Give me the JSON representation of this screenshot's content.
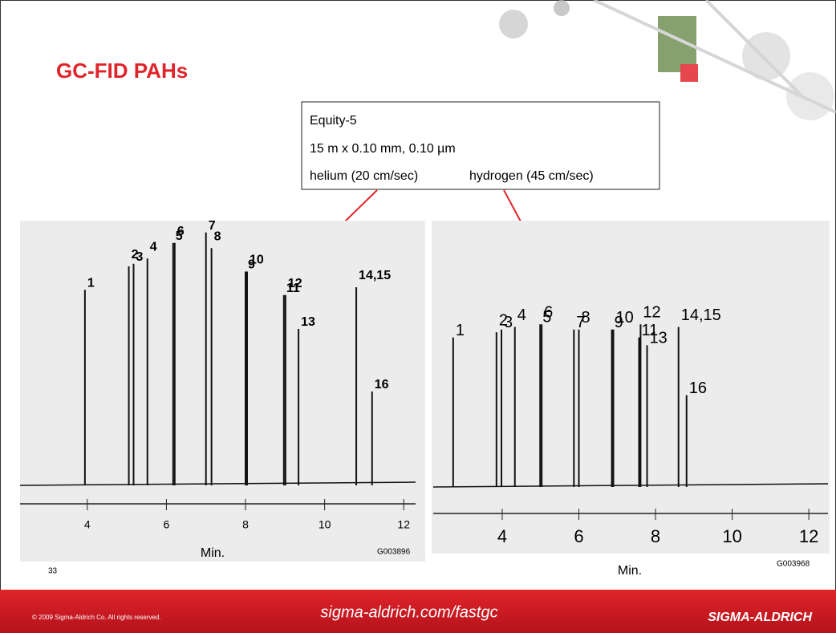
{
  "slide": {
    "title": "GC-FID PAHs",
    "box": [
      "Equity-5",
      "15 m x 0.10 mm, 0.10 µm",
      "helium (20 cm/sec)",
      "hydrogen (45 cm/sec)"
    ],
    "page_number": "33",
    "copyright": "© 2009 Sigma-Aldrich Co. All rights reserved.",
    "url": "sigma-aldrich.com/fastgc",
    "logo": "SIGMA-ALDRICH"
  },
  "chart_data": [
    {
      "type": "chromatogram",
      "x_label": "Min.",
      "code": "G003896",
      "categories": [
        "1",
        "2",
        "3",
        "4",
        "5",
        "6",
        "7",
        "8",
        "9",
        "10",
        "11",
        "12",
        "13",
        "14,15",
        "16"
      ],
      "x": [
        3.94,
        5.05,
        5.17,
        5.52,
        6.17,
        6.21,
        7.0,
        7.14,
        8.0,
        8.04,
        8.97,
        9.01,
        9.34,
        10.8,
        11.2
      ],
      "values": [
        75,
        84,
        85,
        87,
        93,
        93,
        97,
        91,
        82,
        82,
        73,
        73,
        60,
        76,
        36
      ],
      "xlim": [
        2.3,
        12.3
      ],
      "xticks": [
        4,
        6,
        8,
        10,
        12
      ],
      "ylim": [
        0,
        100
      ],
      "color": "#111111"
    },
    {
      "type": "chromatogram",
      "x_label": "Min.",
      "code": "G003968",
      "categories": [
        "1",
        "2",
        "3",
        "4",
        "5",
        "6",
        "7",
        "8",
        "9",
        "10",
        "11",
        "12",
        "13",
        "14,15",
        "16"
      ],
      "x": [
        2.72,
        3.85,
        3.98,
        4.33,
        4.99,
        5.03,
        5.87,
        6.0,
        6.86,
        6.9,
        7.57,
        7.61,
        7.78,
        8.6,
        8.81
      ],
      "values": [
        57,
        59,
        60,
        61,
        62,
        62,
        60,
        60,
        60,
        60,
        57,
        62,
        54,
        61,
        35
      ],
      "xlim": [
        2.2,
        12.5
      ],
      "xticks": [
        4,
        6,
        8,
        10,
        12
      ],
      "ylim": [
        0,
        100
      ],
      "color": "#111111"
    }
  ]
}
